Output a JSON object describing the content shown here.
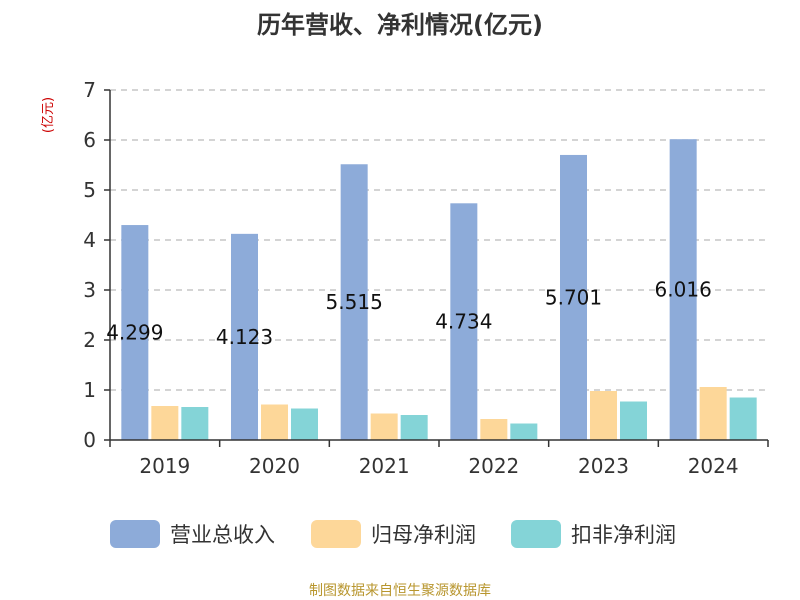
{
  "chart_data": {
    "type": "bar",
    "title": "历年营收、净利情况(亿元)",
    "ylabel": "(亿元)",
    "xlabel": "",
    "categories": [
      "2019",
      "2020",
      "2021",
      "2022",
      "2023",
      "2024"
    ],
    "ylim": [
      0,
      7
    ],
    "yticks": [
      0,
      1,
      2,
      3,
      4,
      5,
      6,
      7
    ],
    "grid": true,
    "legend_position": "bottom",
    "series": [
      {
        "name": "营业总收入",
        "color": "#8dabd9",
        "values": [
          4.299,
          4.123,
          5.515,
          4.734,
          5.701,
          6.016
        ],
        "data_labels": [
          "4.299",
          "4.123",
          "5.515",
          "4.734",
          "5.701",
          "6.016"
        ]
      },
      {
        "name": "归母净利润",
        "color": "#fdd799",
        "values": [
          0.68,
          0.71,
          0.53,
          0.42,
          0.98,
          1.06
        ],
        "data_labels": []
      },
      {
        "name": "扣非净利润",
        "color": "#84d4d7",
        "values": [
          0.66,
          0.63,
          0.5,
          0.33,
          0.77,
          0.85
        ],
        "data_labels": []
      }
    ]
  },
  "colors": {
    "title": "#333333",
    "ylabel": "#cc0000",
    "axis": "#333333",
    "grid": "#bbbbbb",
    "source": "#b8962e"
  },
  "source": "制图数据来自恒生聚源数据库"
}
